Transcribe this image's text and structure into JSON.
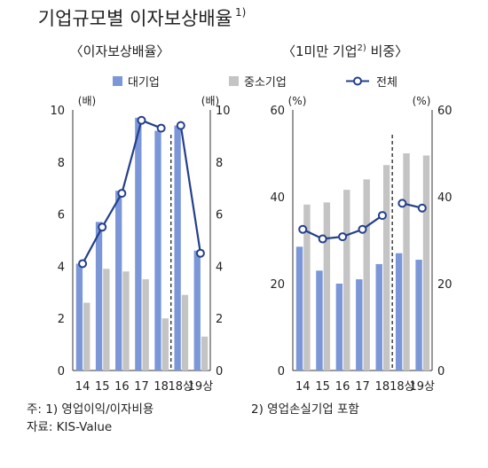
{
  "title": "기업규모별 이자보상배율",
  "title_sup": "1)",
  "panels_sub": [
    {
      "text": "〈이자보상배율〉",
      "sup": ""
    },
    {
      "text": "〈1미만 기업",
      "sup": "2)",
      "text2": " 비중〉"
    }
  ],
  "legend": {
    "large": "대기업",
    "sme": "중소기업",
    "all": "전체"
  },
  "colors": {
    "large": "#7b97d8",
    "sme": "#c4c4c4",
    "all_line": "#243f8c"
  },
  "chart_data": [
    {
      "type": "bar",
      "title": "〈이자보상배율〉",
      "categories": [
        "14",
        "15",
        "16",
        "17",
        "18",
        "18상",
        "19상"
      ],
      "unit_left": "(배)",
      "unit_right": "(배)",
      "ylim": [
        0,
        10
      ],
      "yticks": [
        "0",
        "2",
        "4",
        "6",
        "8",
        "10"
      ],
      "divider_after_index": 4,
      "series": [
        {
          "name": "대기업",
          "kind": "bar",
          "values": [
            4.1,
            5.7,
            6.9,
            9.7,
            9.2,
            9.4,
            4.6
          ]
        },
        {
          "name": "중소기업",
          "kind": "bar",
          "values": [
            2.6,
            3.9,
            3.8,
            3.5,
            2.0,
            2.9,
            1.3
          ]
        },
        {
          "name": "전체",
          "kind": "line",
          "segments": [
            [
              0,
              4
            ],
            [
              5,
              6
            ]
          ],
          "values": [
            4.1,
            5.5,
            6.8,
            9.6,
            9.3,
            9.4,
            4.5
          ]
        }
      ]
    },
    {
      "type": "bar",
      "title": "〈1미만 기업 비중〉",
      "categories": [
        "14",
        "15",
        "16",
        "17",
        "18",
        "18상",
        "19상"
      ],
      "unit_left": "(%)",
      "unit_right": "(%)",
      "ylim": [
        0,
        60
      ],
      "yticks": [
        "0",
        "20",
        "40",
        "60"
      ],
      "divider_after_index": 4,
      "series": [
        {
          "name": "대기업",
          "kind": "bar",
          "values": [
            28.5,
            23.0,
            20.0,
            21.0,
            24.5,
            27.0,
            25.5
          ]
        },
        {
          "name": "중소기업",
          "kind": "bar",
          "values": [
            38.2,
            38.7,
            41.6,
            44.0,
            47.3,
            50.0,
            49.5
          ]
        },
        {
          "name": "전체",
          "kind": "line",
          "segments": [
            [
              0,
              4
            ],
            [
              5,
              6
            ]
          ],
          "values": [
            32.5,
            30.3,
            30.8,
            32.5,
            35.7,
            38.5,
            37.4
          ]
        }
      ]
    }
  ],
  "notes": {
    "line1a": "주: 1) 영업이익/이자비용",
    "line1b": "2) 영업손실기업 포함",
    "line2": "자료: KIS-Value"
  }
}
